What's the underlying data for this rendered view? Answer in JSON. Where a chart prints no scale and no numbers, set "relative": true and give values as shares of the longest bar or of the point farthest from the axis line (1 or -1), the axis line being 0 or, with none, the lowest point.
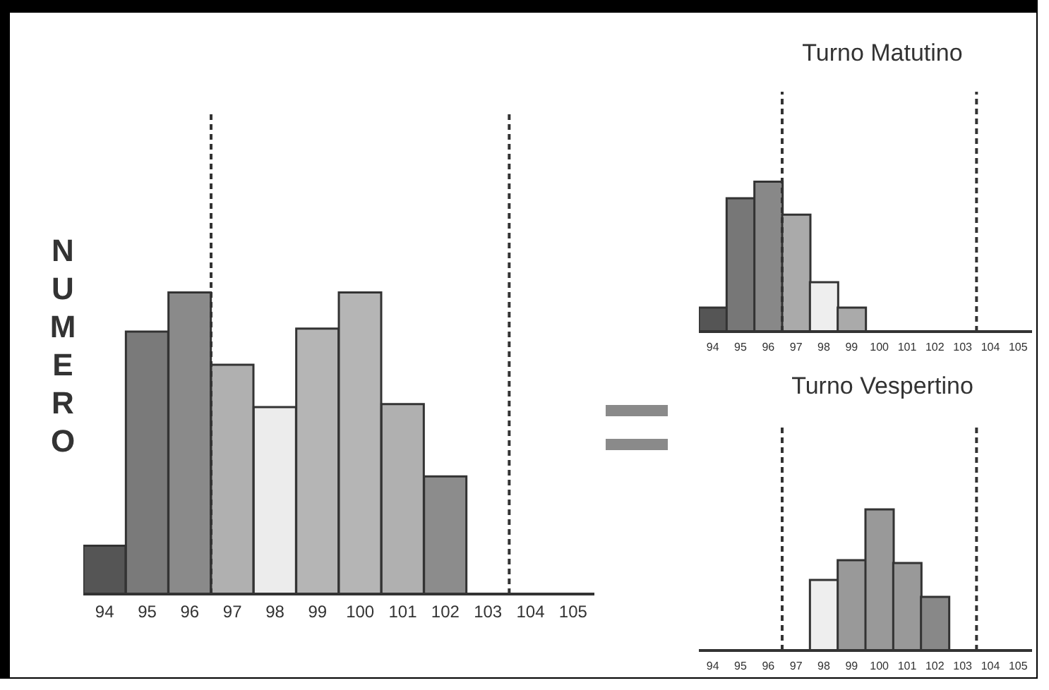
{
  "chart_data": [
    {
      "type": "bar",
      "ylabel": "NUMERO",
      "relative": true,
      "tick_labels": "x",
      "x": [
        94,
        95,
        96,
        97,
        98,
        99,
        100,
        101,
        102,
        103,
        104,
        105
      ],
      "values": [
        0.16,
        0.87,
        1,
        0.76,
        0.62,
        0.88,
        1,
        0.63,
        0.39,
        0,
        0,
        0
      ],
      "colors": [
        "#555555",
        "#7a7a7a",
        "#8a8a8a",
        "#b0b0b0",
        "#ececec",
        "#b5b5b5",
        "#b5b5b5",
        "#b0b0b0",
        "#8c8c8c",
        "#b0b0b0",
        "#b0b0b0",
        "#b0b0b0"
      ],
      "xlim": [
        93.5,
        105.5
      ],
      "xticks": [
        94,
        95,
        96,
        97,
        98,
        99,
        100,
        101,
        102,
        103,
        104,
        105
      ],
      "ref_lines": [
        {
          "axis": "x",
          "value": 96.5,
          "color": "#333333",
          "line_style": "dashed"
        },
        {
          "axis": "x",
          "value": 103.5,
          "color": "#333333",
          "line_style": "dashed"
        }
      ]
    },
    {
      "type": "bar",
      "title": "Turno Matutino",
      "relative": true,
      "tick_labels": "x",
      "x": [
        94,
        95,
        96,
        97,
        98,
        99,
        100,
        101,
        102,
        103,
        104,
        105
      ],
      "values": [
        0.16,
        0.89,
        1,
        0.78,
        0.33,
        0.16,
        0,
        0,
        0,
        0,
        0,
        0
      ],
      "colors": [
        "#555555",
        "#777777",
        "#888888",
        "#aaaaaa",
        "#eeeeee",
        "#aaaaaa",
        "#aaaaaa",
        "#aaaaaa",
        "#aaaaaa",
        "#aaaaaa",
        "#aaaaaa",
        "#aaaaaa"
      ],
      "xlim": [
        93.5,
        105.5
      ],
      "xticks": [
        94,
        95,
        96,
        97,
        98,
        99,
        100,
        101,
        102,
        103,
        104,
        105
      ],
      "ref_lines": [
        {
          "axis": "x",
          "value": 96.5,
          "color": "#333333",
          "line_style": "dashed"
        },
        {
          "axis": "x",
          "value": 103.5,
          "color": "#333333",
          "line_style": "dashed"
        }
      ]
    },
    {
      "type": "bar",
      "title": "Turno Vespertino",
      "relative": true,
      "tick_labels": "x",
      "x": [
        94,
        95,
        96,
        97,
        98,
        99,
        100,
        101,
        102,
        103,
        104,
        105
      ],
      "values": [
        0,
        0,
        0,
        0,
        0.5,
        0.64,
        1,
        0.62,
        0.38,
        0,
        0,
        0
      ],
      "colors": [
        "#999999",
        "#999999",
        "#999999",
        "#999999",
        "#eeeeee",
        "#999999",
        "#999999",
        "#999999",
        "#888888",
        "#999999",
        "#999999",
        "#999999"
      ],
      "xlim": [
        93.5,
        105.5
      ],
      "xticks": [
        94,
        95,
        96,
        97,
        98,
        99,
        100,
        101,
        102,
        103,
        104,
        105
      ],
      "ref_lines": [
        {
          "axis": "x",
          "value": 96.5,
          "color": "#333333",
          "line_style": "dashed"
        },
        {
          "axis": "x",
          "value": 103.5,
          "color": "#333333",
          "line_style": "dashed"
        }
      ]
    }
  ]
}
